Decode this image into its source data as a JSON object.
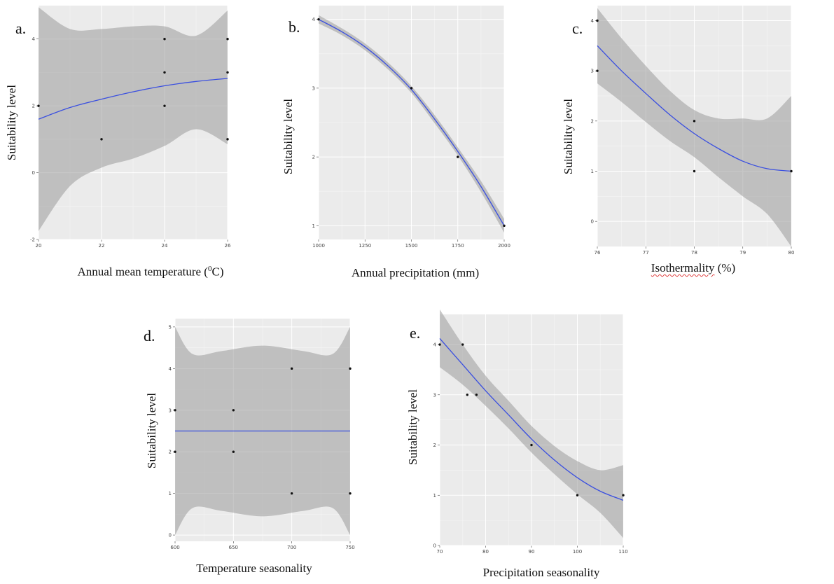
{
  "chart_data": [
    {
      "type": "line",
      "panel": "a.",
      "xlabel": "Annual mean temperature (",
      "xlabel_sup": "0",
      "xlabel_tail": "C)",
      "ylabel": "Suitability level",
      "xlim": [
        20,
        26
      ],
      "ylim": [
        -2,
        5
      ],
      "xticks": [
        20,
        22,
        24,
        26
      ],
      "yticks": [
        -2,
        0,
        2,
        4
      ],
      "points": [
        [
          20,
          2
        ],
        [
          22,
          1
        ],
        [
          24,
          4
        ],
        [
          24,
          3
        ],
        [
          24,
          2
        ],
        [
          26,
          4
        ],
        [
          26,
          3
        ],
        [
          26,
          1
        ]
      ],
      "fit": [
        [
          20,
          1.6
        ],
        [
          21,
          1.95
        ],
        [
          22,
          2.2
        ],
        [
          23,
          2.42
        ],
        [
          24,
          2.6
        ],
        [
          25,
          2.73
        ],
        [
          26,
          2.82
        ]
      ],
      "band_upper": [
        [
          20,
          4.95
        ],
        [
          21,
          4.3
        ],
        [
          22,
          4.3
        ],
        [
          23,
          4.38
        ],
        [
          24,
          4.38
        ],
        [
          25,
          4.1
        ],
        [
          26,
          4.85
        ]
      ],
      "band_lower": [
        [
          20,
          -1.75
        ],
        [
          21,
          -0.4
        ],
        [
          22,
          0.15
        ],
        [
          23,
          0.42
        ],
        [
          24,
          0.8
        ],
        [
          25,
          1.3
        ],
        [
          26,
          0.85
        ]
      ],
      "grid": true
    },
    {
      "type": "line",
      "panel": "b.",
      "xlabel": "Annual precipitation (mm)",
      "ylabel": "Suitability level",
      "xlim": [
        1000,
        2000
      ],
      "ylim": [
        0.8,
        4.2
      ],
      "xticks": [
        1000,
        1250,
        1500,
        1750,
        2000
      ],
      "yticks": [
        1,
        2,
        3,
        4
      ],
      "points": [
        [
          1000,
          4
        ],
        [
          1500,
          3
        ],
        [
          1750,
          2
        ],
        [
          2000,
          1
        ]
      ],
      "fit": [
        [
          1000,
          4.0
        ],
        [
          1125,
          3.82
        ],
        [
          1250,
          3.6
        ],
        [
          1375,
          3.32
        ],
        [
          1500,
          2.98
        ],
        [
          1625,
          2.55
        ],
        [
          1750,
          2.08
        ],
        [
          1875,
          1.57
        ],
        [
          2000,
          1.0
        ]
      ],
      "band_upper": [
        [
          1000,
          4.06
        ],
        [
          1125,
          3.87
        ],
        [
          1250,
          3.65
        ],
        [
          1375,
          3.37
        ],
        [
          1500,
          3.03
        ],
        [
          1625,
          2.61
        ],
        [
          1750,
          2.14
        ],
        [
          1875,
          1.65
        ],
        [
          2000,
          1.1
        ]
      ],
      "band_lower": [
        [
          1000,
          3.94
        ],
        [
          1125,
          3.77
        ],
        [
          1250,
          3.55
        ],
        [
          1375,
          3.27
        ],
        [
          1500,
          2.93
        ],
        [
          1625,
          2.49
        ],
        [
          1750,
          2.02
        ],
        [
          1875,
          1.49
        ],
        [
          2000,
          0.9
        ]
      ],
      "grid": true
    },
    {
      "type": "line",
      "panel": "c.",
      "xlabel": "Isothermality",
      "xlabel_tail": " (%)",
      "ylabel": "Suitability level",
      "xlim": [
        76,
        80
      ],
      "ylim": [
        -0.5,
        4.3
      ],
      "xticks": [
        76,
        77,
        78,
        79,
        80
      ],
      "yticks": [
        0,
        1,
        2,
        3,
        4
      ],
      "points": [
        [
          76,
          4
        ],
        [
          76,
          3
        ],
        [
          78,
          2
        ],
        [
          78,
          1
        ],
        [
          80,
          1
        ]
      ],
      "fit": [
        [
          76,
          3.5
        ],
        [
          76.5,
          3.0
        ],
        [
          77,
          2.55
        ],
        [
          77.5,
          2.12
        ],
        [
          78,
          1.75
        ],
        [
          78.5,
          1.45
        ],
        [
          79,
          1.2
        ],
        [
          79.5,
          1.05
        ],
        [
          80,
          1.0
        ]
      ],
      "band_upper": [
        [
          76,
          4.25
        ],
        [
          76.5,
          3.65
        ],
        [
          77,
          3.1
        ],
        [
          77.5,
          2.6
        ],
        [
          78,
          2.22
        ],
        [
          78.5,
          2.05
        ],
        [
          79,
          2.05
        ],
        [
          79.5,
          2.05
        ],
        [
          80,
          2.5
        ]
      ],
      "band_lower": [
        [
          76,
          2.75
        ],
        [
          76.5,
          2.38
        ],
        [
          77,
          1.98
        ],
        [
          77.5,
          1.6
        ],
        [
          78,
          1.28
        ],
        [
          78.5,
          0.88
        ],
        [
          79,
          0.5
        ],
        [
          79.5,
          0.15
        ],
        [
          80,
          -0.5
        ]
      ],
      "grid": true
    },
    {
      "type": "line",
      "panel": "d.",
      "xlabel": "Temperature seasonality",
      "ylabel": "Suitability level",
      "xlim": [
        600,
        750
      ],
      "ylim": [
        -0.15,
        5.2
      ],
      "xticks": [
        600,
        650,
        700,
        750
      ],
      "yticks": [
        0,
        1,
        2,
        3,
        4,
        5
      ],
      "points": [
        [
          600,
          3
        ],
        [
          600,
          2
        ],
        [
          650,
          3
        ],
        [
          650,
          2
        ],
        [
          700,
          4
        ],
        [
          700,
          1
        ],
        [
          750,
          4
        ],
        [
          750,
          1
        ]
      ],
      "fit": [
        [
          600,
          2.5
        ],
        [
          750,
          2.5
        ]
      ],
      "band_upper": [
        [
          600,
          5.0
        ],
        [
          615,
          4.35
        ],
        [
          640,
          4.42
        ],
        [
          675,
          4.55
        ],
        [
          710,
          4.42
        ],
        [
          735,
          4.35
        ],
        [
          750,
          5.0
        ]
      ],
      "band_lower": [
        [
          600,
          0.0
        ],
        [
          615,
          0.65
        ],
        [
          640,
          0.58
        ],
        [
          675,
          0.45
        ],
        [
          710,
          0.58
        ],
        [
          735,
          0.65
        ],
        [
          750,
          0.0
        ]
      ],
      "grid": true
    },
    {
      "type": "line",
      "panel": "e.",
      "xlabel": "Precipitation seasonality",
      "ylabel": "Suitability level",
      "xlim": [
        70,
        110
      ],
      "ylim": [
        0,
        4.6
      ],
      "xticks": [
        70,
        80,
        90,
        100,
        110
      ],
      "yticks": [
        0,
        1,
        2,
        3,
        4
      ],
      "points": [
        [
          70,
          4
        ],
        [
          75,
          4
        ],
        [
          76,
          3
        ],
        [
          78,
          3
        ],
        [
          90,
          2
        ],
        [
          100,
          1
        ],
        [
          110,
          1
        ]
      ],
      "fit": [
        [
          70,
          4.12
        ],
        [
          75,
          3.6
        ],
        [
          80,
          3.08
        ],
        [
          85,
          2.6
        ],
        [
          90,
          2.12
        ],
        [
          95,
          1.7
        ],
        [
          100,
          1.35
        ],
        [
          105,
          1.08
        ],
        [
          110,
          0.9
        ]
      ],
      "band_upper": [
        [
          70,
          4.7
        ],
        [
          75,
          4.0
        ],
        [
          80,
          3.38
        ],
        [
          85,
          2.88
        ],
        [
          90,
          2.38
        ],
        [
          95,
          1.98
        ],
        [
          100,
          1.68
        ],
        [
          105,
          1.5
        ],
        [
          110,
          1.6
        ]
      ],
      "band_lower": [
        [
          70,
          3.55
        ],
        [
          75,
          3.2
        ],
        [
          80,
          2.78
        ],
        [
          85,
          2.33
        ],
        [
          90,
          1.85
        ],
        [
          95,
          1.42
        ],
        [
          100,
          1.02
        ],
        [
          105,
          0.65
        ],
        [
          110,
          0.15
        ]
      ],
      "grid": true
    }
  ]
}
